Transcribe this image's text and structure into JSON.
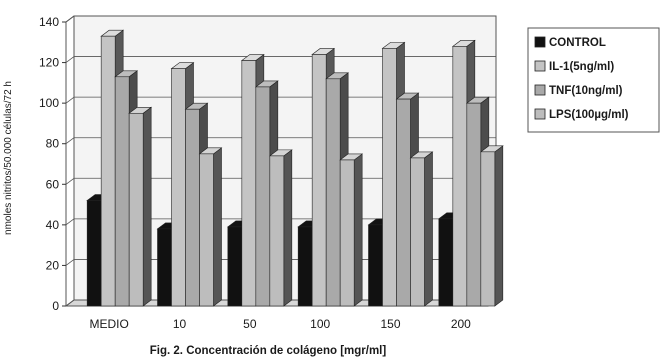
{
  "chart_data": {
    "type": "bar",
    "style": "3d-clustered",
    "title": "",
    "caption": "Fig. 2. Concentración de colágeno [mgr/ml]",
    "xlabel": "",
    "ylabel": "nmoles nitritos/50.000 células/72 h",
    "ylim": [
      0,
      140
    ],
    "yticks": [
      0,
      20,
      40,
      60,
      80,
      100,
      120,
      140
    ],
    "grid": true,
    "legend_position": "right",
    "categories": [
      "MEDIO",
      "10",
      "50",
      "100",
      "150",
      "200"
    ],
    "series": [
      {
        "name": "CONTROL",
        "color": "#111111",
        "values": [
          52,
          38,
          39,
          39,
          40,
          43
        ]
      },
      {
        "name": "IL-1(5ng/ml)",
        "color": "#c4c4c4",
        "values": [
          133,
          117,
          121,
          124,
          127,
          128
        ]
      },
      {
        "name": "TNF(10ng/ml)",
        "color": "#a9a9a9",
        "values": [
          113,
          97,
          108,
          112,
          102,
          100
        ]
      },
      {
        "name": "LPS(100µg/ml)",
        "color": "#bdbdbd",
        "values": [
          95,
          75,
          74,
          72,
          73,
          76
        ]
      }
    ]
  }
}
